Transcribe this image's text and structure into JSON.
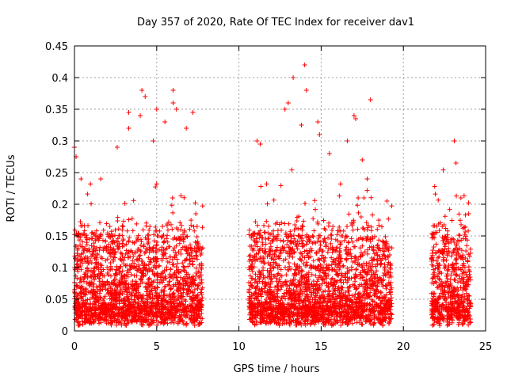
{
  "chart_data": {
    "type": "scatter",
    "title": "Day 357 of 2020, Rate Of TEC Index for receiver dav1",
    "xlabel": "GPS time / hours",
    "ylabel": "ROTI / TECUs",
    "xlim": [
      0,
      25
    ],
    "ylim": [
      0,
      0.45
    ],
    "xticks": [
      0,
      5,
      10,
      15,
      20,
      25
    ],
    "xtick_labels": [
      "0",
      "5",
      "10",
      "15",
      "20",
      "25"
    ],
    "yticks": [
      0,
      0.05,
      0.1,
      0.15,
      0.2,
      0.25,
      0.3,
      0.35,
      0.4,
      0.45
    ],
    "ytick_labels": [
      "0",
      "0.05",
      "0.1",
      "0.15",
      "0.2",
      "0.25",
      "0.3",
      "0.35",
      "0.4",
      "0.45"
    ],
    "grid": true,
    "marker": "+",
    "color": "#ff0000",
    "segments": [
      {
        "x_start": 0.0,
        "x_end": 7.8
      },
      {
        "x_start": 10.6,
        "x_end": 19.3
      },
      {
        "x_start": 21.7,
        "x_end": 24.1
      }
    ],
    "notable_points": [
      {
        "x": 0.0,
        "y": 0.29
      },
      {
        "x": 0.1,
        "y": 0.275
      },
      {
        "x": 0.4,
        "y": 0.24
      },
      {
        "x": 1.6,
        "y": 0.24
      },
      {
        "x": 2.6,
        "y": 0.29
      },
      {
        "x": 3.3,
        "y": 0.345
      },
      {
        "x": 3.3,
        "y": 0.32
      },
      {
        "x": 4.0,
        "y": 0.34
      },
      {
        "x": 4.1,
        "y": 0.38
      },
      {
        "x": 4.3,
        "y": 0.37
      },
      {
        "x": 4.8,
        "y": 0.3
      },
      {
        "x": 5.0,
        "y": 0.35
      },
      {
        "x": 5.5,
        "y": 0.33
      },
      {
        "x": 6.0,
        "y": 0.38
      },
      {
        "x": 6.0,
        "y": 0.36
      },
      {
        "x": 6.2,
        "y": 0.35
      },
      {
        "x": 6.8,
        "y": 0.32
      },
      {
        "x": 7.2,
        "y": 0.345
      },
      {
        "x": 11.1,
        "y": 0.3
      },
      {
        "x": 11.3,
        "y": 0.295
      },
      {
        "x": 12.8,
        "y": 0.35
      },
      {
        "x": 13.0,
        "y": 0.36
      },
      {
        "x": 13.3,
        "y": 0.4
      },
      {
        "x": 13.8,
        "y": 0.325
      },
      {
        "x": 14.0,
        "y": 0.42
      },
      {
        "x": 14.1,
        "y": 0.38
      },
      {
        "x": 14.8,
        "y": 0.33
      },
      {
        "x": 14.9,
        "y": 0.31
      },
      {
        "x": 15.5,
        "y": 0.28
      },
      {
        "x": 16.6,
        "y": 0.3
      },
      {
        "x": 17.0,
        "y": 0.34
      },
      {
        "x": 17.1,
        "y": 0.335
      },
      {
        "x": 17.5,
        "y": 0.27
      },
      {
        "x": 17.6,
        "y": 0.21
      },
      {
        "x": 17.8,
        "y": 0.24
      },
      {
        "x": 18.0,
        "y": 0.365
      },
      {
        "x": 19.0,
        "y": 0.205
      },
      {
        "x": 23.1,
        "y": 0.3
      },
      {
        "x": 23.2,
        "y": 0.265
      },
      {
        "x": 23.5,
        "y": 0.21
      }
    ]
  }
}
